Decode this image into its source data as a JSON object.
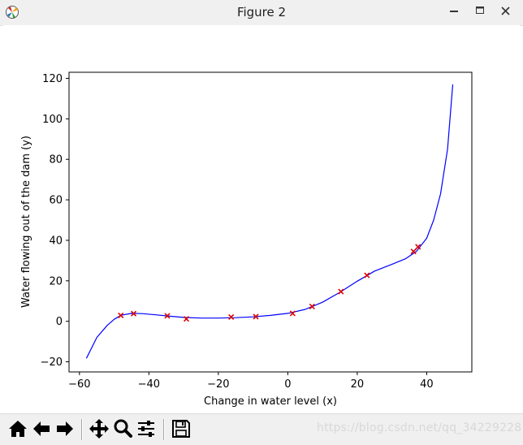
{
  "window": {
    "title": "Figure 2",
    "app_icon": "matplotlib-icon"
  },
  "controls": {
    "minimize": "minimize-icon",
    "maximize": "maximize-icon",
    "close": "close-icon"
  },
  "colors": {
    "curve": "#0000ff",
    "points": "#dc0000",
    "titlebar": "#f0f0f0"
  },
  "chart_data": {
    "type": "scatter",
    "xlabel": "Change in water level (x)",
    "ylabel": "Water flowing out of the dam (y)",
    "xlim": [
      -63,
      53
    ],
    "ylim": [
      -25,
      123
    ],
    "xticks": [
      -60,
      -40,
      -20,
      0,
      20,
      40
    ],
    "yticks": [
      -20,
      0,
      20,
      40,
      60,
      80,
      100,
      120
    ],
    "grid": false,
    "series": [
      {
        "kind": "scatter",
        "marker": "x",
        "color": "#dc0000",
        "points": [
          [
            -48.1,
            2.9
          ],
          [
            -44.4,
            3.8
          ],
          [
            -34.7,
            2.7
          ],
          [
            -29.2,
            1.2
          ],
          [
            -16.3,
            2.1
          ],
          [
            -9.2,
            2.3
          ],
          [
            1.4,
            3.9
          ],
          [
            7.0,
            7.3
          ],
          [
            15.3,
            14.7
          ],
          [
            22.8,
            22.7
          ],
          [
            36.2,
            34.5
          ],
          [
            37.5,
            36.8
          ]
        ]
      },
      {
        "kind": "line",
        "color": "#0000ff",
        "points": [
          [
            -58,
            -18.3
          ],
          [
            -55,
            -8.0
          ],
          [
            -52,
            -2.0
          ],
          [
            -50,
            1.0
          ],
          [
            -48,
            3.0
          ],
          [
            -45,
            3.9
          ],
          [
            -42,
            3.8
          ],
          [
            -38,
            3.2
          ],
          [
            -34,
            2.5
          ],
          [
            -30,
            1.9
          ],
          [
            -25,
            1.6
          ],
          [
            -20,
            1.6
          ],
          [
            -15,
            1.8
          ],
          [
            -10,
            2.2
          ],
          [
            -5,
            2.9
          ],
          [
            0,
            3.9
          ],
          [
            5,
            5.9
          ],
          [
            10,
            9.4
          ],
          [
            15,
            14.3
          ],
          [
            20,
            19.8
          ],
          [
            25,
            24.8
          ],
          [
            30,
            28.2
          ],
          [
            34,
            31.0
          ],
          [
            37,
            34.5
          ],
          [
            40,
            41.0
          ],
          [
            42,
            50.0
          ],
          [
            44,
            63.0
          ],
          [
            46,
            85.0
          ],
          [
            47.5,
            117.0
          ]
        ]
      }
    ]
  },
  "toolbar": {
    "buttons": [
      "home-icon",
      "back-icon",
      "forward-icon",
      "pan-icon",
      "zoom-icon",
      "configure-subplots-icon",
      "save-icon"
    ]
  },
  "watermark": "https://blog.csdn.net/qq_34229228"
}
